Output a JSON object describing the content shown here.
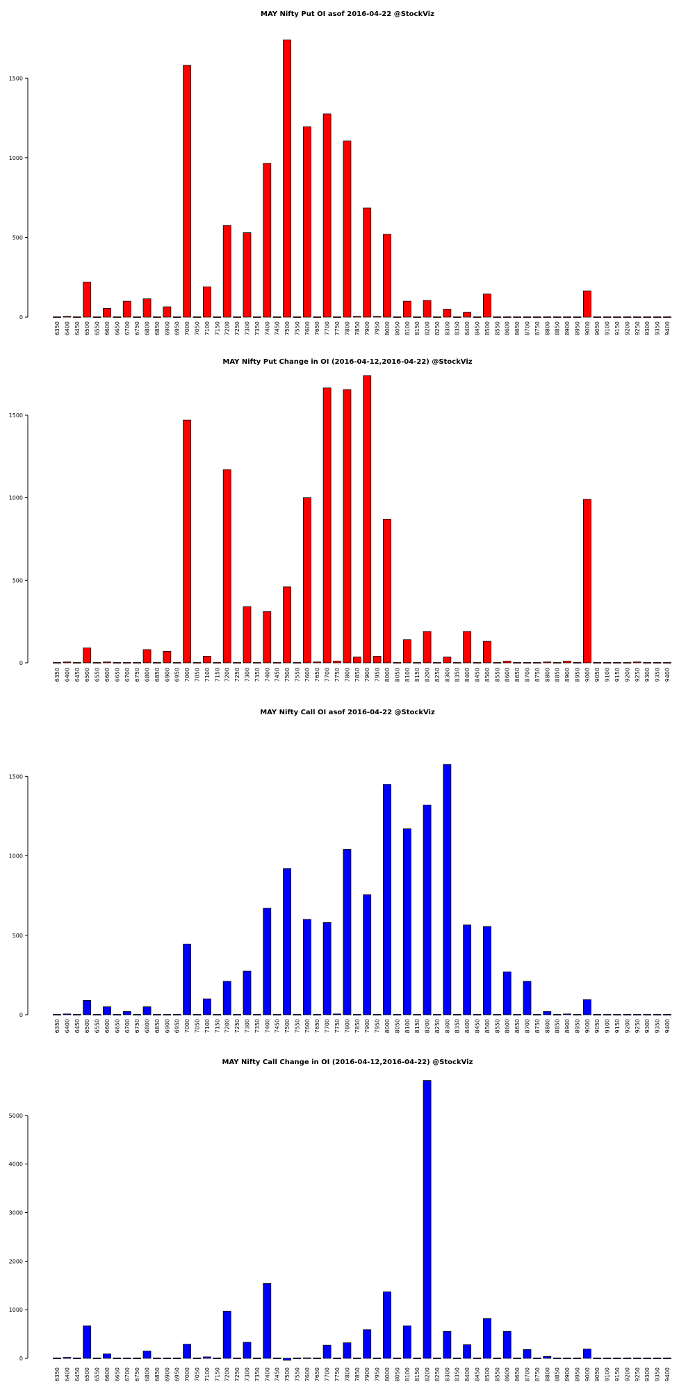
{
  "chart_data": [
    {
      "type": "bar",
      "title": "MAY Nifty Put OI asof 2016-04-22 @StockViz",
      "xlabel": "",
      "ylabel": "",
      "color": "#ff0000",
      "ylim": [
        0,
        1750
      ],
      "yticks": [
        0,
        500,
        1000,
        1500
      ],
      "categories": [
        "6350",
        "6400",
        "6450",
        "6500",
        "6550",
        "6600",
        "6650",
        "6700",
        "6750",
        "6800",
        "6850",
        "6900",
        "6950",
        "7000",
        "7050",
        "7100",
        "7150",
        "7200",
        "7250",
        "7300",
        "7350",
        "7400",
        "7450",
        "7500",
        "7550",
        "7600",
        "7650",
        "7700",
        "7750",
        "7800",
        "7850",
        "7900",
        "7950",
        "8000",
        "8050",
        "8100",
        "8150",
        "8200",
        "8250",
        "8300",
        "8350",
        "8400",
        "8450",
        "8500",
        "8550",
        "8600",
        "8650",
        "8700",
        "8750",
        "8800",
        "8850",
        "8900",
        "8950",
        "9000",
        "9050",
        "9100",
        "9150",
        "9200",
        "9250",
        "9300",
        "9350",
        "9400"
      ],
      "values": [
        0,
        5,
        0,
        220,
        0,
        55,
        0,
        100,
        0,
        115,
        0,
        65,
        0,
        1580,
        0,
        190,
        0,
        575,
        0,
        530,
        0,
        965,
        0,
        1740,
        0,
        1195,
        0,
        1275,
        0,
        1105,
        5,
        685,
        5,
        520,
        0,
        100,
        0,
        105,
        0,
        50,
        0,
        30,
        0,
        145,
        0,
        0,
        0,
        0,
        0,
        0,
        0,
        0,
        0,
        165,
        0,
        0,
        0,
        0,
        0,
        0,
        0,
        0
      ]
    },
    {
      "type": "bar",
      "title": "MAY Nifty Put Change in OI (2016-04-12,2016-04-22) @StockViz",
      "xlabel": "",
      "ylabel": "",
      "color": "#ff0000",
      "ylim": [
        0,
        1740
      ],
      "yticks": [
        0,
        500,
        1000,
        1500
      ],
      "categories": [
        "6350",
        "6400",
        "6450",
        "6500",
        "6550",
        "6600",
        "6650",
        "6700",
        "6750",
        "6800",
        "6850",
        "6900",
        "6950",
        "7000",
        "7050",
        "7100",
        "7150",
        "7200",
        "7250",
        "7300",
        "7350",
        "7400",
        "7450",
        "7500",
        "7550",
        "7600",
        "7650",
        "7700",
        "7750",
        "7800",
        "7850",
        "7900",
        "7950",
        "8000",
        "8050",
        "8100",
        "8150",
        "8200",
        "8250",
        "8300",
        "8350",
        "8400",
        "8450",
        "8500",
        "8550",
        "8600",
        "8650",
        "8700",
        "8750",
        "8800",
        "8850",
        "8900",
        "8950",
        "9000",
        "9050",
        "9100",
        "9150",
        "9200",
        "9250",
        "9300",
        "9350",
        "9400"
      ],
      "values": [
        0,
        5,
        0,
        90,
        0,
        5,
        0,
        0,
        0,
        80,
        0,
        70,
        0,
        1470,
        0,
        40,
        0,
        1170,
        0,
        340,
        0,
        310,
        0,
        460,
        0,
        1000,
        5,
        1665,
        10,
        1655,
        35,
        1740,
        40,
        870,
        0,
        140,
        0,
        190,
        0,
        35,
        0,
        190,
        0,
        130,
        0,
        10,
        0,
        0,
        0,
        5,
        0,
        10,
        0,
        990,
        0,
        0,
        0,
        0,
        5,
        0,
        0,
        0
      ]
    },
    {
      "type": "bar",
      "title": "MAY Nifty Call OI asof 2016-04-22 @StockViz",
      "xlabel": "",
      "ylabel": "",
      "color": "#0000ff",
      "ylim": [
        0,
        1580
      ],
      "yticks": [
        0,
        500,
        1000,
        1500
      ],
      "categories": [
        "6350",
        "6400",
        "6450",
        "6500",
        "6550",
        "6600",
        "6650",
        "6700",
        "6750",
        "6800",
        "6850",
        "6900",
        "6950",
        "7000",
        "7050",
        "7100",
        "7150",
        "7200",
        "7250",
        "7300",
        "7350",
        "7400",
        "7450",
        "7500",
        "7550",
        "7600",
        "7650",
        "7700",
        "7750",
        "7800",
        "7850",
        "7900",
        "7950",
        "8000",
        "8050",
        "8100",
        "8150",
        "8200",
        "8250",
        "8300",
        "8350",
        "8400",
        "8450",
        "8500",
        "8550",
        "8600",
        "8650",
        "8700",
        "8750",
        "8800",
        "8850",
        "8900",
        "8950",
        "9000",
        "9050",
        "9100",
        "9150",
        "9200",
        "9250",
        "9300",
        "9350",
        "9400"
      ],
      "values": [
        0,
        5,
        0,
        90,
        0,
        50,
        0,
        20,
        0,
        50,
        0,
        0,
        0,
        445,
        0,
        100,
        0,
        210,
        0,
        275,
        0,
        670,
        0,
        920,
        0,
        600,
        0,
        580,
        5,
        1040,
        0,
        755,
        0,
        1450,
        0,
        1170,
        0,
        1320,
        0,
        1575,
        0,
        565,
        0,
        555,
        0,
        270,
        0,
        210,
        0,
        20,
        0,
        5,
        0,
        95,
        0,
        0,
        0,
        0,
        0,
        0,
        0,
        0
      ]
    },
    {
      "type": "bar",
      "title": "MAY Nifty Call Change in OI (2016-04-12,2016-04-22) @StockViz",
      "xlabel": "",
      "ylabel": "",
      "color": "#0000ff",
      "ylim": [
        -100,
        5800
      ],
      "yticks": [
        0,
        1000,
        2000,
        3000,
        4000,
        5000
      ],
      "categories": [
        "6350",
        "6400",
        "6450",
        "6500",
        "6550",
        "6600",
        "6650",
        "6700",
        "6750",
        "6800",
        "6850",
        "6900",
        "6950",
        "7000",
        "7050",
        "7100",
        "7150",
        "7200",
        "7250",
        "7300",
        "7350",
        "7400",
        "7450",
        "7500",
        "7550",
        "7600",
        "7650",
        "7700",
        "7750",
        "7800",
        "7850",
        "7900",
        "7950",
        "8000",
        "8050",
        "8100",
        "8150",
        "8200",
        "8250",
        "8300",
        "8350",
        "8400",
        "8450",
        "8500",
        "8550",
        "8600",
        "8650",
        "8700",
        "8750",
        "8800",
        "8850",
        "8900",
        "8950",
        "9000",
        "9050",
        "9100",
        "9150",
        "9200",
        "9250",
        "9300",
        "9350",
        "9400"
      ],
      "values": [
        0,
        20,
        0,
        670,
        0,
        90,
        0,
        0,
        0,
        150,
        0,
        0,
        0,
        290,
        0,
        30,
        0,
        970,
        0,
        330,
        0,
        1540,
        0,
        -40,
        0,
        10,
        0,
        270,
        0,
        320,
        0,
        590,
        0,
        1370,
        0,
        670,
        0,
        5720,
        0,
        555,
        0,
        280,
        0,
        820,
        0,
        555,
        0,
        180,
        0,
        40,
        0,
        0,
        0,
        190,
        0,
        0,
        0,
        0,
        0,
        0,
        0,
        0
      ]
    }
  ]
}
